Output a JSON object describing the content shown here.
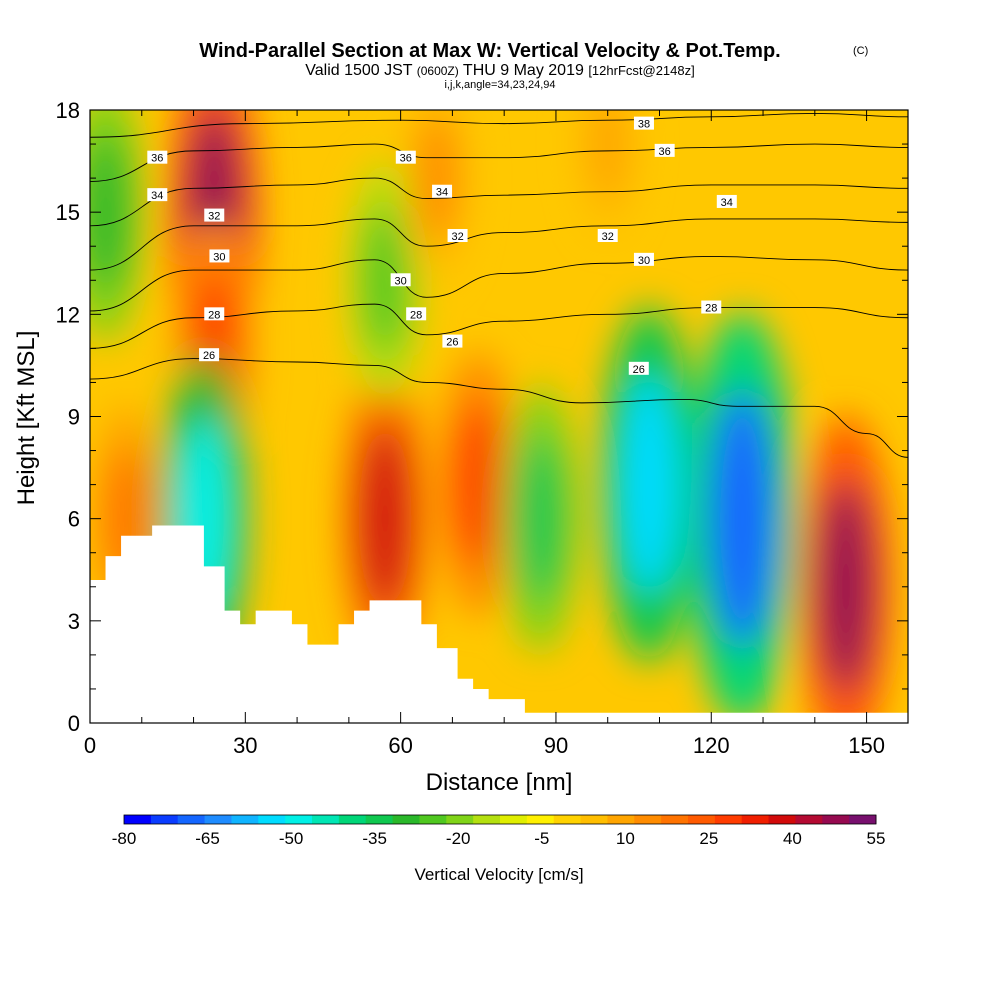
{
  "chart_data": {
    "type": "heatmap",
    "title": "Wind-Parallel Section at Max W: Vertical Velocity & Pot.Temp.",
    "title_mark": "(C)",
    "subtitle_parts": [
      "Valid 1500 JST",
      "(0600Z)",
      "THU 9 May 2019",
      "[12hrFcst@2148z]"
    ],
    "subtitle2": "i,j,k,angle=34,23,24,94",
    "xlabel": "Distance [nm]",
    "ylabel": "Height [Kft MSL]",
    "xlim": [
      0,
      158
    ],
    "ylim": [
      0,
      18
    ],
    "x_ticks": [
      0,
      30,
      60,
      90,
      120,
      150
    ],
    "x_tick_labels": [
      "0",
      "30",
      "60",
      "90",
      "120",
      "150"
    ],
    "y_ticks": [
      0,
      3,
      6,
      9,
      12,
      15,
      18
    ],
    "y_tick_labels": [
      "0",
      "3",
      "6",
      "9",
      "12",
      "15",
      "18"
    ],
    "colorbar": {
      "label": "Vertical Velocity [cm/s]",
      "min": -80,
      "max": 55,
      "step": 5,
      "tick_labels": [
        "-80",
        "-65",
        "-50",
        "-35",
        "-20",
        "-5",
        "10",
        "25",
        "40",
        "55"
      ],
      "colors": [
        "#0000ff",
        "#0a3cff",
        "#1466ff",
        "#1e8cff",
        "#10b4ff",
        "#00dcff",
        "#00f0e6",
        "#00e6b4",
        "#00d678",
        "#10c850",
        "#2ab82a",
        "#50c820",
        "#80d418",
        "#b4e010",
        "#e0ee00",
        "#fff000",
        "#ffd200",
        "#ffbe00",
        "#ffa500",
        "#ff8c00",
        "#ff7300",
        "#ff5a00",
        "#ff3c00",
        "#f01e00",
        "#d20a0a",
        "#b40a32",
        "#960a50",
        "#78106e"
      ]
    },
    "vertical_velocity_cells": [
      {
        "x": 3,
        "y": 15,
        "w": -30
      },
      {
        "x": 24,
        "y": 15,
        "w": 50
      },
      {
        "x": 24,
        "y": 11,
        "w": 30
      },
      {
        "x": 22,
        "y": 6,
        "w": -48
      },
      {
        "x": 7,
        "y": 6,
        "w": 22
      },
      {
        "x": 57,
        "y": 6,
        "w": 42
      },
      {
        "x": 75,
        "y": 7,
        "w": 32
      },
      {
        "x": 57,
        "y": 13,
        "w": -25
      },
      {
        "x": 67,
        "y": 16,
        "w": 18
      },
      {
        "x": 87,
        "y": 6,
        "w": -32
      },
      {
        "x": 108,
        "y": 7,
        "w": -55
      },
      {
        "x": 126,
        "y": 6,
        "w": -70
      },
      {
        "x": 146,
        "y": 4,
        "w": 52
      },
      {
        "x": 100,
        "y": 17,
        "w": 10
      }
    ],
    "theta_contours": [
      {
        "label": "26",
        "label_positions": [
          [
            23,
            10.8
          ],
          [
            70,
            11.2
          ],
          [
            106,
            10.4
          ]
        ],
        "values": [
          [
            0,
            10.1
          ],
          [
            20,
            10.7
          ],
          [
            40,
            10.6
          ],
          [
            55,
            10.5
          ],
          [
            65,
            10.0
          ],
          [
            80,
            9.8
          ],
          [
            95,
            9.4
          ],
          [
            115,
            9.5
          ],
          [
            125,
            9.3
          ],
          [
            140,
            9.3
          ],
          [
            150,
            8.5
          ],
          [
            158,
            7.8
          ]
        ]
      },
      {
        "label": "28",
        "label_positions": [
          [
            24,
            12.0
          ],
          [
            63,
            12.0
          ],
          [
            120,
            12.2
          ]
        ],
        "values": [
          [
            0,
            11.0
          ],
          [
            20,
            11.9
          ],
          [
            40,
            12.1
          ],
          [
            55,
            12.3
          ],
          [
            65,
            11.4
          ],
          [
            80,
            11.8
          ],
          [
            100,
            12.0
          ],
          [
            120,
            12.2
          ],
          [
            140,
            12.2
          ],
          [
            158,
            11.9
          ]
        ]
      },
      {
        "label": "30",
        "label_positions": [
          [
            25,
            13.7
          ],
          [
            60,
            13.0
          ],
          [
            107,
            13.6
          ]
        ],
        "values": [
          [
            0,
            12.1
          ],
          [
            20,
            13.3
          ],
          [
            40,
            13.3
          ],
          [
            55,
            13.6
          ],
          [
            65,
            12.5
          ],
          [
            80,
            13.2
          ],
          [
            100,
            13.5
          ],
          [
            120,
            13.7
          ],
          [
            140,
            13.6
          ],
          [
            158,
            13.3
          ]
        ]
      },
      {
        "label": "32",
        "label_positions": [
          [
            24,
            14.9
          ],
          [
            71,
            14.3
          ],
          [
            100,
            14.3
          ]
        ],
        "values": [
          [
            0,
            13.3
          ],
          [
            20,
            14.6
          ],
          [
            40,
            14.6
          ],
          [
            55,
            14.8
          ],
          [
            65,
            14.0
          ],
          [
            80,
            14.4
          ],
          [
            100,
            14.6
          ],
          [
            120,
            14.8
          ],
          [
            140,
            14.8
          ],
          [
            158,
            14.7
          ]
        ]
      },
      {
        "label": "34",
        "label_positions": [
          [
            13,
            15.5
          ],
          [
            68,
            15.6
          ],
          [
            123,
            15.3
          ]
        ],
        "values": [
          [
            0,
            14.6
          ],
          [
            20,
            15.7
          ],
          [
            40,
            15.8
          ],
          [
            55,
            16.0
          ],
          [
            65,
            15.4
          ],
          [
            80,
            15.5
          ],
          [
            100,
            15.6
          ],
          [
            120,
            15.8
          ],
          [
            140,
            15.8
          ],
          [
            158,
            15.7
          ]
        ]
      },
      {
        "label": "36",
        "label_positions": [
          [
            13,
            16.6
          ],
          [
            61,
            16.6
          ],
          [
            111,
            16.8
          ]
        ],
        "values": [
          [
            0,
            15.9
          ],
          [
            20,
            16.8
          ],
          [
            40,
            16.9
          ],
          [
            55,
            17.0
          ],
          [
            65,
            16.6
          ],
          [
            80,
            16.6
          ],
          [
            100,
            16.8
          ],
          [
            120,
            16.9
          ],
          [
            140,
            17.0
          ],
          [
            158,
            16.9
          ]
        ]
      },
      {
        "label": "38",
        "label_positions": [
          [
            107,
            17.6
          ]
        ],
        "values": [
          [
            0,
            17.2
          ],
          [
            30,
            17.6
          ],
          [
            60,
            17.7
          ],
          [
            80,
            17.6
          ],
          [
            100,
            17.7
          ],
          [
            120,
            17.8
          ],
          [
            140,
            17.9
          ],
          [
            158,
            17.8
          ]
        ]
      }
    ],
    "terrain": [
      [
        0,
        4.2
      ],
      [
        3,
        4.2
      ],
      [
        3,
        4.9
      ],
      [
        6,
        4.9
      ],
      [
        6,
        5.5
      ],
      [
        12,
        5.5
      ],
      [
        12,
        5.8
      ],
      [
        22,
        5.8
      ],
      [
        22,
        4.6
      ],
      [
        26,
        4.6
      ],
      [
        26,
        3.3
      ],
      [
        29,
        3.3
      ],
      [
        29,
        2.9
      ],
      [
        32,
        2.9
      ],
      [
        32,
        3.3
      ],
      [
        39,
        3.3
      ],
      [
        39,
        2.9
      ],
      [
        42,
        2.9
      ],
      [
        42,
        2.3
      ],
      [
        48,
        2.3
      ],
      [
        48,
        2.9
      ],
      [
        51,
        2.9
      ],
      [
        51,
        3.3
      ],
      [
        54,
        3.3
      ],
      [
        54,
        3.6
      ],
      [
        64,
        3.6
      ],
      [
        64,
        2.9
      ],
      [
        67,
        2.9
      ],
      [
        67,
        2.2
      ],
      [
        71,
        2.2
      ],
      [
        71,
        1.3
      ],
      [
        74,
        1.3
      ],
      [
        74,
        1.0
      ],
      [
        77,
        1.0
      ],
      [
        77,
        0.7
      ],
      [
        84,
        0.7
      ],
      [
        84,
        0.3
      ],
      [
        158,
        0.3
      ]
    ]
  }
}
